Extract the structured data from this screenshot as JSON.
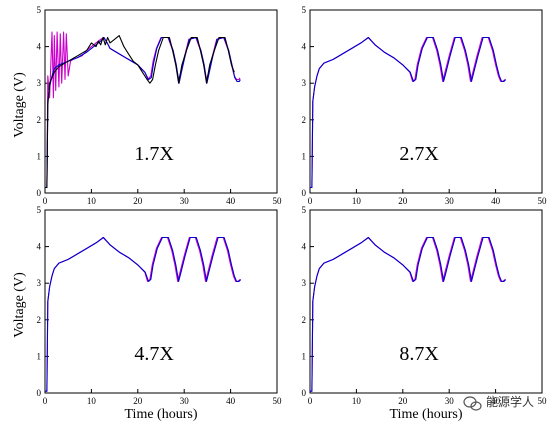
{
  "chart_data": {
    "type": "line",
    "xlabel": "Time (hours)",
    "ylabel": "Voltage (V)",
    "xlim": [
      0,
      50
    ],
    "ylim": [
      0,
      5
    ],
    "xticks": [
      0,
      10,
      20,
      30,
      40,
      50
    ],
    "yticks": [
      0,
      1,
      2,
      3,
      4,
      5
    ],
    "grid": false,
    "legend": "none",
    "series_colors": [
      "#cc00cc",
      "#0000cc",
      "#000000"
    ],
    "panels": [
      {
        "label": "1.7X",
        "series": [
          {
            "color": "#cc00cc",
            "x": [
              0,
              0.4,
              0.6,
              1,
              1.5,
              1.8,
              2,
              2.3,
              2.6,
              3,
              3.3,
              3.6,
              4,
              4.3,
              4.6,
              5,
              5.5,
              6,
              7,
              8,
              9,
              10,
              11,
              12,
              12.7,
              13.4,
              14,
              16,
              18,
              20,
              21.5,
              22.2,
              22.8,
              23.3,
              24,
              25,
              26.5,
              27.5,
              28.2,
              28.8,
              29.3,
              30,
              31,
              32.5,
              33.5,
              34.2,
              34.8,
              35.3,
              36,
              37,
              38.5,
              39.5,
              40.2,
              40.8,
              41.3,
              41.8,
              42
            ],
            "y": [
              0.15,
              0.15,
              3.2,
              2.6,
              4.4,
              2.6,
              4.3,
              2.8,
              4.4,
              2.9,
              4.35,
              3,
              4.4,
              3.1,
              4.35,
              3.2,
              3.6,
              3.65,
              3.7,
              3.75,
              3.9,
              4.0,
              4.1,
              4.2,
              4.25,
              4.1,
              3.95,
              3.8,
              3.65,
              3.5,
              3.3,
              3.1,
              3.2,
              3.6,
              3.95,
              4.25,
              4.25,
              3.9,
              3.5,
              3.1,
              3.3,
              3.7,
              4.2,
              4.25,
              3.9,
              3.5,
              3.1,
              3.3,
              3.7,
              4.2,
              4.25,
              3.9,
              3.5,
              3.2,
              3.1,
              3.1,
              3.15
            ]
          },
          {
            "color": "#0000cc",
            "x": [
              0,
              0.4,
              0.6,
              1,
              1.5,
              2,
              3,
              5,
              7,
              9,
              10,
              11,
              12,
              12.7,
              13.4,
              14,
              16,
              18,
              20,
              21.5,
              22.3,
              22.9,
              23.4,
              24.1,
              25.1,
              26.6,
              27.6,
              28.3,
              28.9,
              29.4,
              30.1,
              31.1,
              32.6,
              33.6,
              34.3,
              34.9,
              35.4,
              36.1,
              37.1,
              38.6,
              39.6,
              40.3,
              40.9,
              41.4,
              41.9,
              42.1
            ],
            "y": [
              0.15,
              0.15,
              2.5,
              2.9,
              3.2,
              3.4,
              3.5,
              3.6,
              3.7,
              3.85,
              3.95,
              4.05,
              4.15,
              4.25,
              4.1,
              3.95,
              3.8,
              3.65,
              3.5,
              3.3,
              3.1,
              3.15,
              3.55,
              3.95,
              4.25,
              4.25,
              3.9,
              3.5,
              3.0,
              3.3,
              3.7,
              4.2,
              4.25,
              3.9,
              3.5,
              3.0,
              3.3,
              3.7,
              4.2,
              4.25,
              3.9,
              3.5,
              3.15,
              3.05,
              3.05,
              3.1
            ]
          },
          {
            "color": "#000000",
            "x": [
              0,
              0.4,
              0.6,
              1,
              2,
              3,
              5,
              7,
              9,
              10,
              11,
              11.5,
              12,
              12.5,
              13,
              13.5,
              14,
              15,
              16,
              17,
              18,
              19,
              20,
              21,
              22,
              22.6,
              23.2,
              23.8,
              24.5,
              25.5,
              26.8,
              27.5,
              28.2,
              28.8,
              29.5,
              30.5,
              31.5,
              32.8,
              33.5,
              34.2,
              34.8,
              35.5,
              36.5,
              37.5,
              38.8,
              39.5,
              40.2,
              40.8
            ],
            "y": [
              0.15,
              0.15,
              2.4,
              3.0,
              3.3,
              3.45,
              3.6,
              3.75,
              3.9,
              4.1,
              4.0,
              4.15,
              4.05,
              4.25,
              4.05,
              4.25,
              4.1,
              4.2,
              4.3,
              4.0,
              3.8,
              3.6,
              3.5,
              3.3,
              3.1,
              3.0,
              3.1,
              3.5,
              3.9,
              4.25,
              4.25,
              3.9,
              3.5,
              3.0,
              3.5,
              3.9,
              4.25,
              4.25,
              3.9,
              3.5,
              3.0,
              3.5,
              3.9,
              4.25,
              4.25,
              3.9,
              3.5,
              3.3
            ]
          }
        ]
      },
      {
        "label": "2.7X",
        "series": [
          {
            "color": "#cc00cc",
            "x": [
              0,
              0.4,
              0.6,
              1,
              1.5,
              2,
              3,
              5,
              7,
              9,
              11,
              12.5,
              14,
              16,
              18,
              20,
              21.5,
              22.1,
              22.6,
              23.1,
              24,
              25.1,
              26.4,
              27.3,
              28,
              28.6,
              29.1,
              30,
              31.1,
              32.4,
              33.3,
              34,
              34.6,
              35.1,
              36,
              37.1,
              38.4,
              39.3,
              40,
              40.6,
              41.1,
              41.6,
              42
            ],
            "y": [
              0.15,
              0.15,
              2.5,
              2.9,
              3.2,
              3.4,
              3.55,
              3.65,
              3.8,
              3.95,
              4.1,
              4.25,
              4.05,
              3.85,
              3.7,
              3.5,
              3.3,
              3.05,
              3.1,
              3.5,
              3.95,
              4.25,
              4.25,
              3.9,
              3.5,
              3.05,
              3.3,
              3.75,
              4.25,
              4.25,
              3.9,
              3.5,
              3.05,
              3.3,
              3.75,
              4.25,
              4.25,
              3.9,
              3.5,
              3.2,
              3.05,
              3.05,
              3.1
            ]
          },
          {
            "color": "#0000cc",
            "x": [
              0,
              0.4,
              0.6,
              1,
              1.5,
              2,
              3,
              5,
              7,
              9,
              11,
              12.6,
              14,
              16,
              18,
              20,
              21.6,
              22.3,
              22.8,
              23.3,
              24.2,
              25.3,
              26.6,
              27.5,
              28.2,
              28.8,
              29.3,
              30.2,
              31.3,
              32.6,
              33.5,
              34.2,
              34.8,
              35.3,
              36.2,
              37.3,
              38.6,
              39.5,
              40.2,
              40.8,
              41.3,
              41.8,
              42.2
            ],
            "y": [
              0.15,
              0.15,
              2.5,
              2.9,
              3.2,
              3.4,
              3.55,
              3.65,
              3.8,
              3.95,
              4.1,
              4.25,
              4.05,
              3.85,
              3.7,
              3.5,
              3.3,
              3.05,
              3.1,
              3.5,
              3.95,
              4.25,
              4.25,
              3.9,
              3.5,
              3.05,
              3.3,
              3.75,
              4.25,
              4.25,
              3.9,
              3.5,
              3.05,
              3.3,
              3.75,
              4.25,
              4.25,
              3.9,
              3.5,
              3.2,
              3.05,
              3.05,
              3.1
            ]
          }
        ]
      },
      {
        "label": "4.7X",
        "series": [
          {
            "color": "#cc00cc",
            "x": [
              0,
              0.4,
              0.6,
              1,
              1.5,
              2,
              3,
              5,
              7,
              9,
              11,
              12.5,
              14,
              16,
              18,
              20,
              21.5,
              22.1,
              22.6,
              23.1,
              24,
              25.1,
              26.4,
              27.3,
              28,
              28.6,
              29.1,
              30,
              31.1,
              32.4,
              33.3,
              34,
              34.6,
              35.1,
              36,
              37.1,
              38.4,
              39.3,
              40,
              40.6,
              41.1,
              41.6,
              42
            ],
            "y": [
              0.05,
              0.05,
              2.5,
              2.9,
              3.2,
              3.4,
              3.55,
              3.65,
              3.8,
              3.95,
              4.1,
              4.25,
              4.05,
              3.85,
              3.7,
              3.5,
              3.3,
              3.05,
              3.1,
              3.5,
              3.95,
              4.25,
              4.25,
              3.9,
              3.5,
              3.05,
              3.3,
              3.75,
              4.25,
              4.25,
              3.9,
              3.5,
              3.05,
              3.3,
              3.75,
              4.25,
              4.25,
              3.9,
              3.5,
              3.2,
              3.05,
              3.05,
              3.1
            ]
          },
          {
            "color": "#0000cc",
            "x": [
              0,
              0.4,
              0.6,
              1,
              1.5,
              2,
              3,
              5,
              7,
              9,
              11,
              12.6,
              14,
              16,
              18,
              20,
              21.6,
              22.3,
              22.8,
              23.3,
              24.2,
              25.3,
              26.6,
              27.5,
              28.2,
              28.8,
              29.3,
              30.2,
              31.3,
              32.6,
              33.5,
              34.2,
              34.8,
              35.3,
              36.2,
              37.3,
              38.6,
              39.5,
              40.2,
              40.8,
              41.3,
              41.8,
              42.2
            ],
            "y": [
              0.05,
              0.05,
              2.5,
              2.9,
              3.2,
              3.4,
              3.55,
              3.65,
              3.8,
              3.95,
              4.1,
              4.25,
              4.05,
              3.85,
              3.7,
              3.5,
              3.3,
              3.05,
              3.1,
              3.5,
              3.95,
              4.25,
              4.25,
              3.9,
              3.5,
              3.05,
              3.3,
              3.75,
              4.25,
              4.25,
              3.9,
              3.5,
              3.05,
              3.3,
              3.75,
              4.25,
              4.25,
              3.9,
              3.5,
              3.2,
              3.05,
              3.05,
              3.1
            ]
          }
        ]
      },
      {
        "label": "8.7X",
        "series": [
          {
            "color": "#cc00cc",
            "x": [
              0,
              0.4,
              0.6,
              1,
              1.5,
              2,
              3,
              5,
              7,
              9,
              11,
              12.5,
              14,
              16,
              18,
              20,
              21.5,
              22.1,
              22.6,
              23.1,
              24,
              25.1,
              26.4,
              27.3,
              28,
              28.6,
              29.1,
              30,
              31.1,
              32.4,
              33.3,
              34,
              34.6,
              35.1,
              36,
              37.1,
              38.4,
              39.3,
              40,
              40.6,
              41.1,
              41.6,
              42
            ],
            "y": [
              0.05,
              0.05,
              2.5,
              2.9,
              3.2,
              3.4,
              3.55,
              3.65,
              3.8,
              3.95,
              4.1,
              4.25,
              4.05,
              3.85,
              3.7,
              3.5,
              3.3,
              3.05,
              3.1,
              3.5,
              3.95,
              4.25,
              4.25,
              3.9,
              3.5,
              3.05,
              3.3,
              3.75,
              4.25,
              4.25,
              3.9,
              3.5,
              3.05,
              3.3,
              3.75,
              4.25,
              4.25,
              3.9,
              3.5,
              3.2,
              3.05,
              3.05,
              3.1
            ]
          },
          {
            "color": "#0000cc",
            "x": [
              0,
              0.4,
              0.6,
              1,
              1.5,
              2,
              3,
              5,
              7,
              9,
              11,
              12.6,
              14,
              16,
              18,
              20,
              21.6,
              22.3,
              22.8,
              23.3,
              24.2,
              25.3,
              26.6,
              27.5,
              28.2,
              28.8,
              29.3,
              30.2,
              31.3,
              32.6,
              33.5,
              34.2,
              34.8,
              35.3,
              36.2,
              37.3,
              38.6,
              39.5,
              40.2,
              40.8,
              41.3,
              41.8,
              42.2
            ],
            "y": [
              0.05,
              0.05,
              2.5,
              2.9,
              3.2,
              3.4,
              3.55,
              3.65,
              3.8,
              3.95,
              4.1,
              4.25,
              4.05,
              3.85,
              3.7,
              3.5,
              3.3,
              3.05,
              3.1,
              3.5,
              3.95,
              4.25,
              4.25,
              3.9,
              3.5,
              3.05,
              3.3,
              3.75,
              4.25,
              4.25,
              3.9,
              3.5,
              3.05,
              3.3,
              3.75,
              4.25,
              4.25,
              3.9,
              3.5,
              3.2,
              3.05,
              3.05,
              3.1
            ]
          }
        ]
      }
    ]
  },
  "watermark": {
    "icon": "wechat-icon",
    "text": "能源学人"
  }
}
